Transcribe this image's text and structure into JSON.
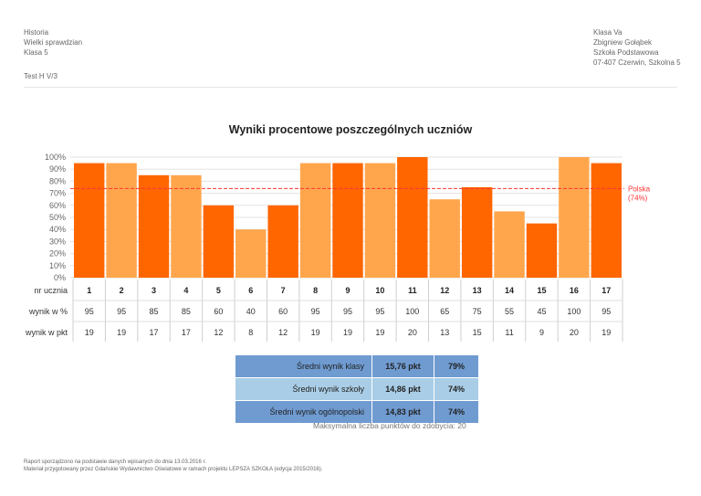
{
  "header": {
    "left": [
      "Historia",
      "Wielki sprawdzian",
      "Klasa 5"
    ],
    "right": [
      "Klasa Va",
      "Zbigniew Gołąbek",
      "Szkoła Podstawowa",
      "07-407 Czerwin, Szkolna 5"
    ],
    "test_name": "Test H V/3"
  },
  "colors": {
    "bar_dark": "#ff6600",
    "bar_light": "#ffa64d",
    "national_line": "#ff3333",
    "summary_dark": "#6f9bd1",
    "summary_light": "#a9cde6"
  },
  "chart_data": {
    "type": "bar",
    "title": "Wyniki procentowe poszczególnych uczniów",
    "xlabel": "nr ucznia",
    "ylabel": "",
    "ylim": [
      0,
      100
    ],
    "yticks": [
      "0%",
      "10%",
      "20%",
      "30%",
      "40%",
      "50%",
      "60%",
      "70%",
      "80%",
      "90%",
      "100%"
    ],
    "categories": [
      "1",
      "2",
      "3",
      "4",
      "5",
      "6",
      "7",
      "8",
      "9",
      "10",
      "11",
      "12",
      "13",
      "14",
      "15",
      "16",
      "17"
    ],
    "values": [
      95,
      95,
      85,
      85,
      60,
      40,
      60,
      95,
      95,
      95,
      100,
      65,
      75,
      55,
      45,
      100,
      95
    ],
    "bar_shade": [
      "dark",
      "light",
      "dark",
      "light",
      "dark",
      "light",
      "dark",
      "light",
      "dark",
      "light",
      "dark",
      "light",
      "dark",
      "light",
      "dark",
      "light",
      "dark"
    ],
    "grid": true,
    "reference_line": {
      "label_line1": "Polska",
      "label_line2": "(74%)",
      "value": 74
    },
    "table": {
      "row_labels": [
        "nr ucznia",
        "wynik w %",
        "wynik w pkt"
      ],
      "percent": [
        "95",
        "95",
        "85",
        "85",
        "60",
        "40",
        "60",
        "95",
        "95",
        "95",
        "100",
        "65",
        "75",
        "55",
        "45",
        "100",
        "95"
      ],
      "points": [
        "19",
        "19",
        "17",
        "17",
        "12",
        "8",
        "12",
        "19",
        "19",
        "19",
        "20",
        "13",
        "15",
        "11",
        "9",
        "20",
        "19"
      ]
    }
  },
  "summary": [
    {
      "label": "Średni wynik klasy",
      "points": "15,76 pkt",
      "percent": "79%"
    },
    {
      "label": "Średni wynik szkoły",
      "points": "14,86 pkt",
      "percent": "74%"
    },
    {
      "label": "Średni wynik ogólnopolski",
      "points": "14,83 pkt",
      "percent": "74%"
    }
  ],
  "max_points_note": "Maksymalna liczba punktów do zdobycia: 20",
  "footer": [
    "Raport sporządzono na podstawie danych wpisanych do dnia 13.03.2016 r.",
    "Materiał przygotowany przez Gdańskie Wydawnictwo Oświatowe w ramach projektu LEPSZA SZKOŁA (edycja 2015/2016)."
  ]
}
